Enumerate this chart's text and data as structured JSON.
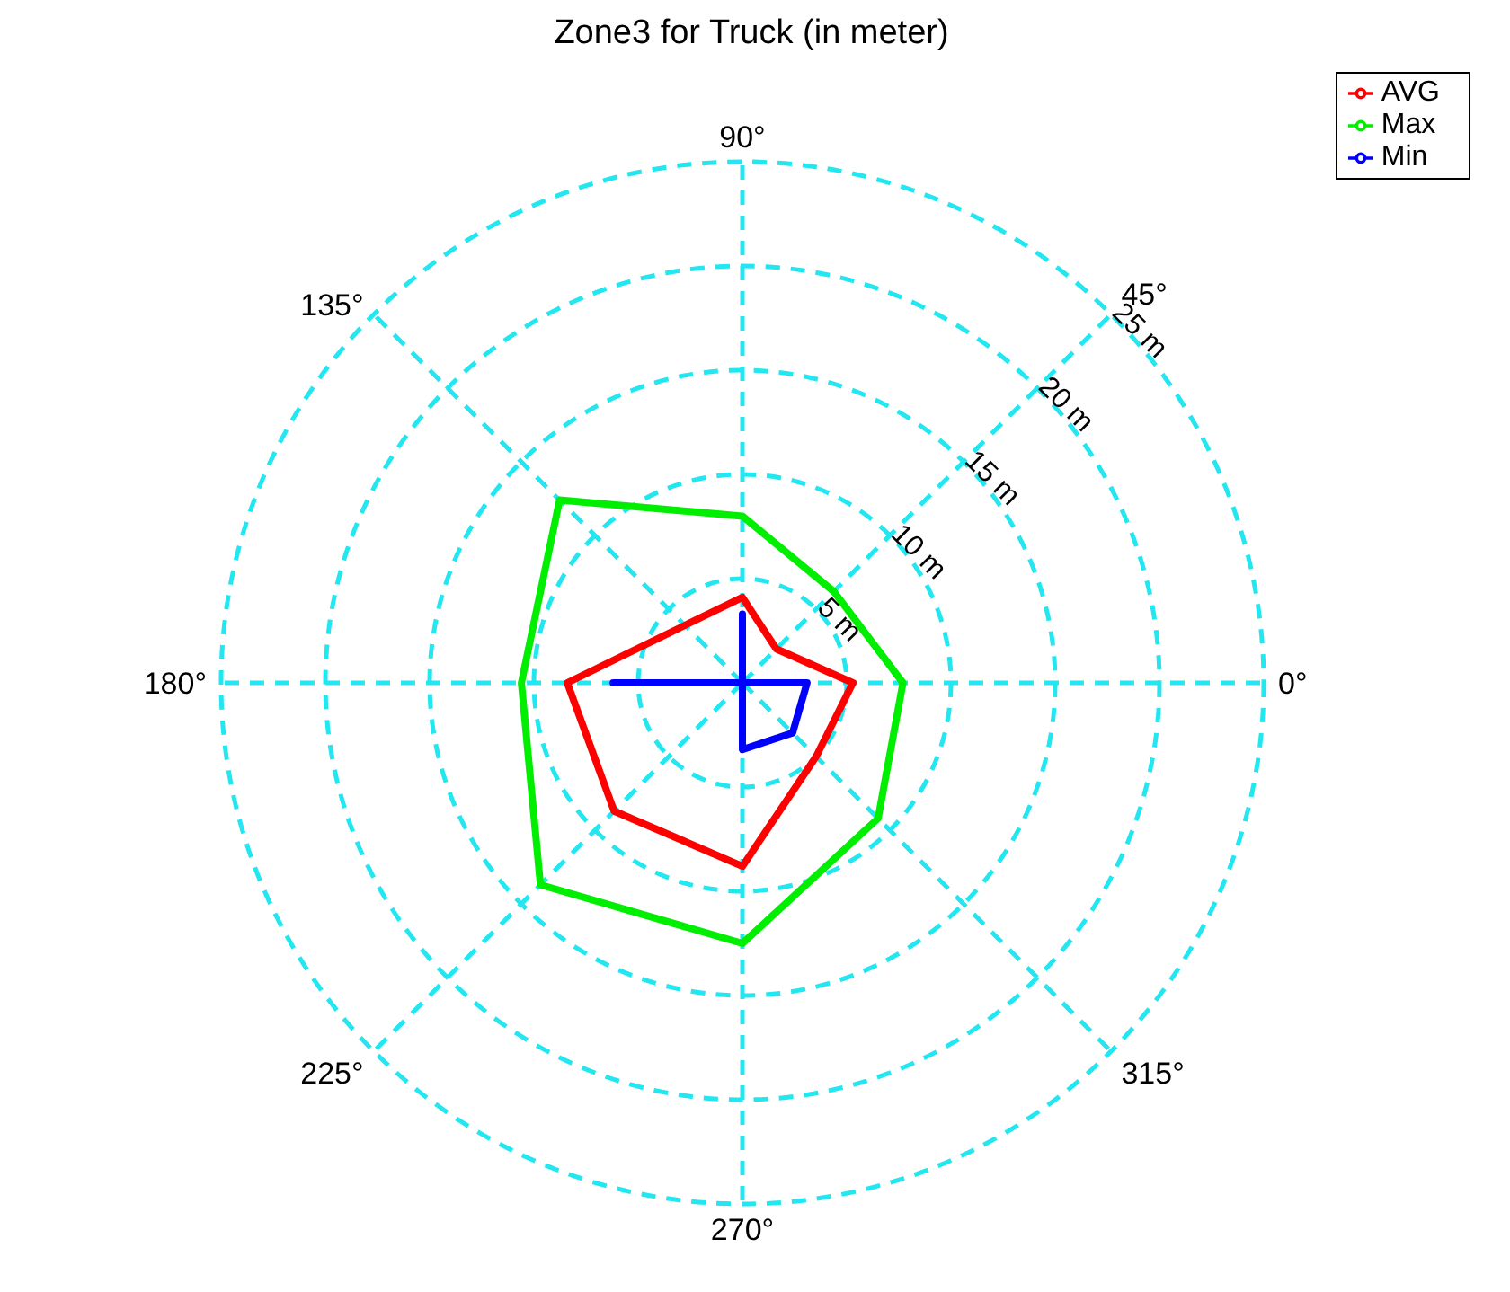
{
  "chart_data": {
    "type": "radar",
    "title": "Zone3 for Truck (in meter)",
    "categories": [
      "90°",
      "45°",
      "0°",
      "315°",
      "270°",
      "225°",
      "180°",
      "135°"
    ],
    "series": [
      {
        "name": "AVG",
        "color": "#ff0000",
        "values": [
          4.1,
          2.3,
          5.3,
          5,
          8.8,
          8.7,
          8.4,
          3.9
        ]
      },
      {
        "name": "Max",
        "color": "#00ee00",
        "values": [
          8,
          6.2,
          7.7,
          9.2,
          12.5,
          13.7,
          10.6,
          12.4
        ]
      },
      {
        "name": "Min",
        "color": "#0000ff",
        "values": [
          3.3,
          0,
          3.1,
          3.4,
          3.2,
          0,
          6.2,
          0
        ]
      }
    ],
    "ylim": [
      0,
      25
    ],
    "yticks": [
      {
        "value": 5,
        "label": "5 m"
      },
      {
        "value": 10,
        "label": "10 m"
      },
      {
        "value": 15,
        "label": "15 m"
      },
      {
        "value": 20,
        "label": "20 m"
      },
      {
        "value": 25,
        "label": "25 m"
      }
    ],
    "grid": true,
    "legend": "top right",
    "marker": "none",
    "line_style": "solid"
  }
}
